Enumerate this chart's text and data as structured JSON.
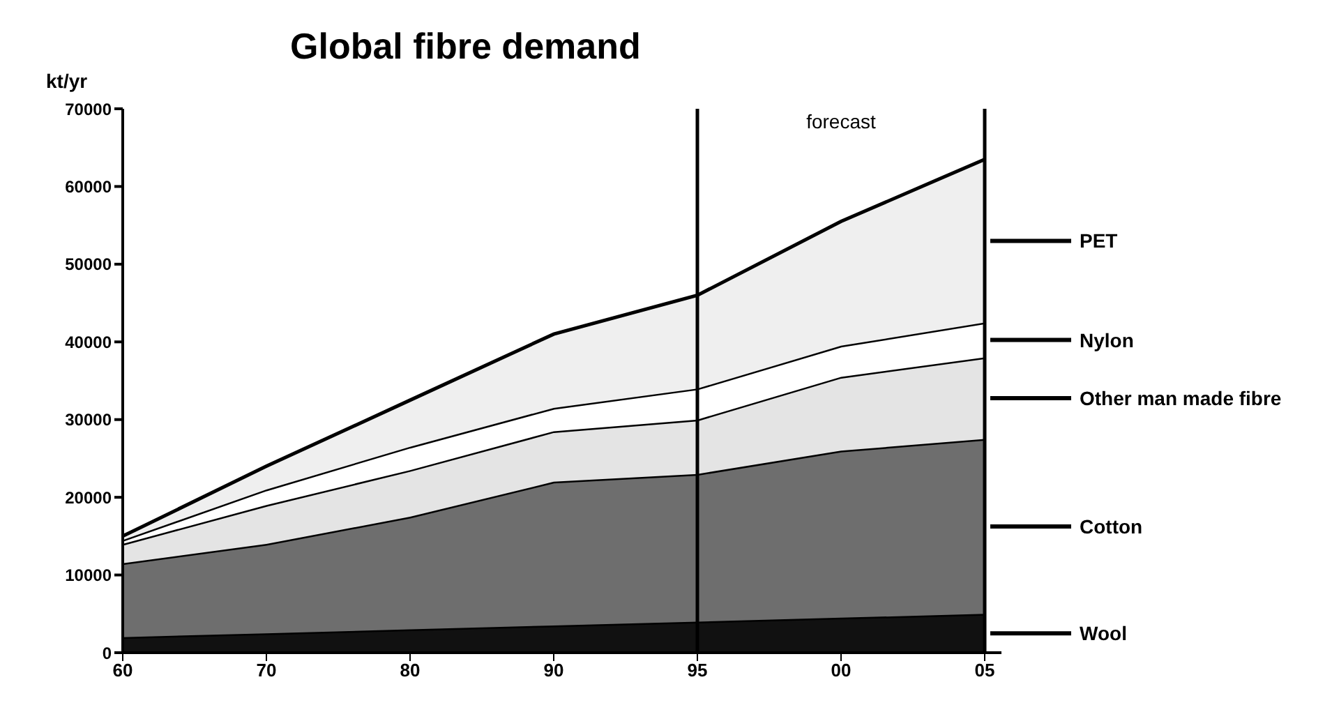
{
  "chart_data": {
    "type": "area",
    "title": "Global fibre demand",
    "ylabel": "kt/yr",
    "stacked": true,
    "categories": [
      "60",
      "70",
      "80",
      "90",
      "95",
      "00",
      "05"
    ],
    "series": [
      {
        "name": "Wool",
        "color": "#111111",
        "values": [
          2000,
          2500,
          3000,
          3500,
          4000,
          4500,
          5000
        ]
      },
      {
        "name": "Cotton",
        "color": "#6e6e6e",
        "values": [
          9500,
          11500,
          14500,
          18500,
          19000,
          21500,
          22500
        ]
      },
      {
        "name": "Other man made fibre",
        "color": "#e4e4e4",
        "values": [
          2500,
          5000,
          6000,
          6500,
          7000,
          9500,
          10500
        ]
      },
      {
        "name": "Nylon",
        "color": "#ffffff",
        "values": [
          500,
          2000,
          3000,
          3000,
          4000,
          4000,
          4500
        ]
      },
      {
        "name": "PET",
        "color": "#efefef",
        "values": [
          500,
          3000,
          6000,
          9500,
          12000,
          16000,
          21000
        ]
      }
    ],
    "ylim": [
      0,
      70000
    ],
    "yticks": [
      0,
      10000,
      20000,
      30000,
      40000,
      50000,
      60000,
      70000
    ],
    "ref_lines": [
      {
        "axis": "x",
        "value": "95",
        "label": null
      },
      {
        "axis": "x",
        "value": "05",
        "label": null
      }
    ],
    "annotations": [
      "forecast"
    ],
    "grid": false,
    "legend": "right"
  }
}
